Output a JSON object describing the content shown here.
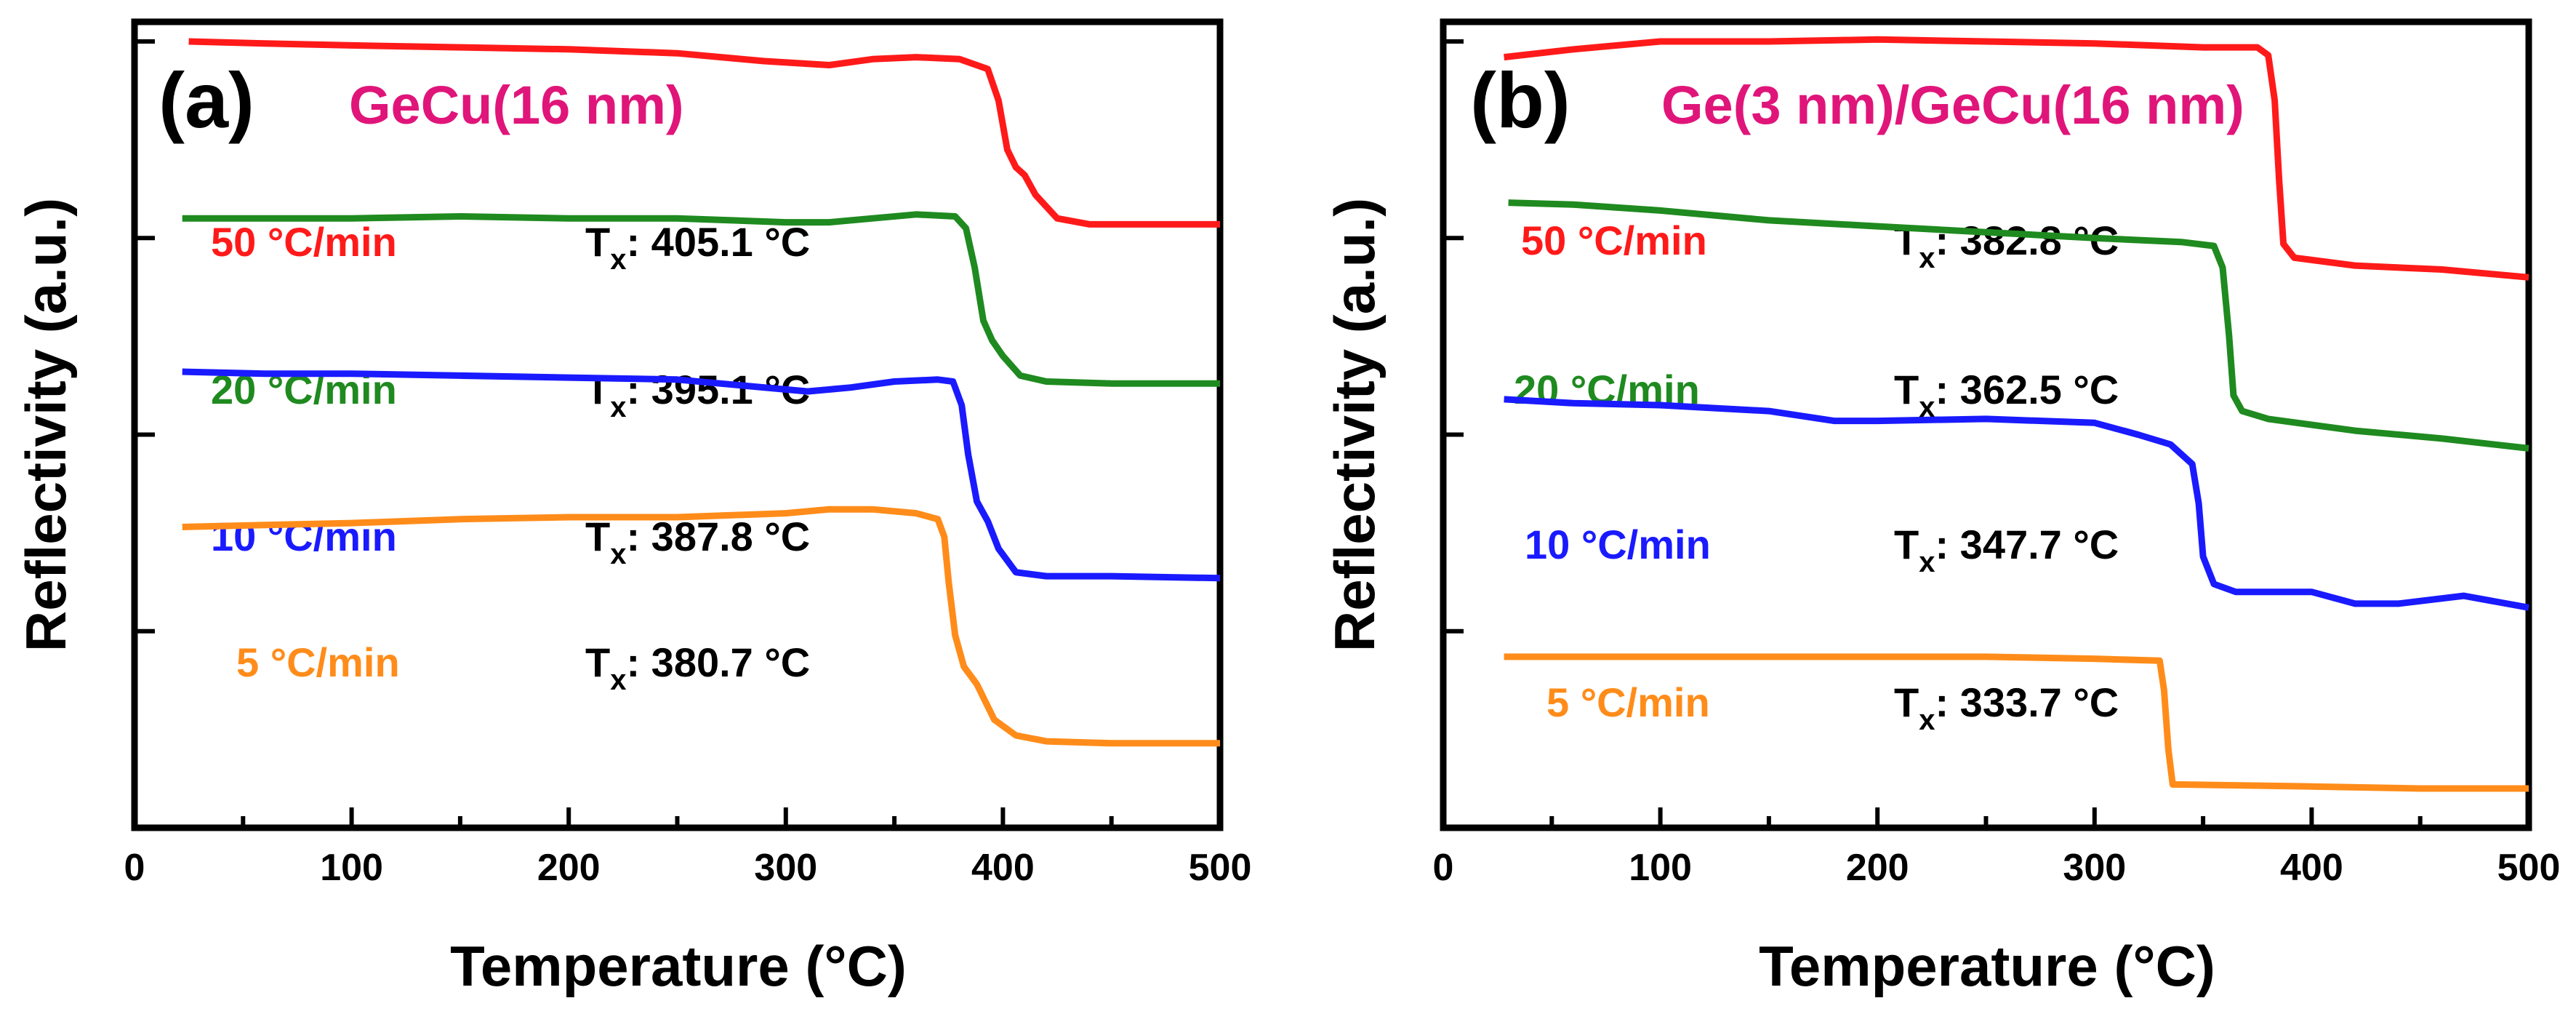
{
  "chart_data": [
    {
      "type": "line",
      "panel": "(a)",
      "title": "GeCu(16 nm)",
      "xlabel": "Temperature (°C)",
      "ylabel": "Reflectivity (a.u.)",
      "xlim": [
        0,
        500
      ],
      "ylim": [
        0,
        4.1
      ],
      "xticks": [
        "0",
        "100",
        "200",
        "300",
        "400",
        "500"
      ],
      "yticks_unlabeled": 4,
      "colors": {
        "title": "#e0157a"
      },
      "series": [
        {
          "name": "50 °C/min",
          "tx_label": "T",
          "tx_sub": "x",
          "tx_value": ": 405.1 °C",
          "color": "#ff1a1a",
          "points": [
            [
              25,
              4.0
            ],
            [
              60,
              3.99
            ],
            [
              100,
              3.98
            ],
            [
              150,
              3.97
            ],
            [
              200,
              3.96
            ],
            [
              250,
              3.94
            ],
            [
              290,
              3.9
            ],
            [
              320,
              3.88
            ],
            [
              340,
              3.91
            ],
            [
              360,
              3.92
            ],
            [
              380,
              3.91
            ],
            [
              393,
              3.86
            ],
            [
              398,
              3.7
            ],
            [
              402,
              3.45
            ],
            [
              406,
              3.36
            ],
            [
              410,
              3.32
            ],
            [
              415,
              3.22
            ],
            [
              425,
              3.1
            ],
            [
              440,
              3.07
            ],
            [
              470,
              3.07
            ],
            [
              500,
              3.07
            ]
          ]
        },
        {
          "name": "20 °C/min",
          "tx_label": "T",
          "tx_sub": "x",
          "tx_value": ": 395.1 °C",
          "color": "#1f8a1f",
          "points": [
            [
              22,
              3.1
            ],
            [
              60,
              3.1
            ],
            [
              100,
              3.1
            ],
            [
              150,
              3.11
            ],
            [
              200,
              3.1
            ],
            [
              250,
              3.1
            ],
            [
              300,
              3.08
            ],
            [
              320,
              3.08
            ],
            [
              340,
              3.1
            ],
            [
              360,
              3.12
            ],
            [
              378,
              3.11
            ],
            [
              383,
              3.05
            ],
            [
              387,
              2.85
            ],
            [
              391,
              2.58
            ],
            [
              395,
              2.48
            ],
            [
              400,
              2.4
            ],
            [
              408,
              2.3
            ],
            [
              420,
              2.27
            ],
            [
              450,
              2.26
            ],
            [
              500,
              2.26
            ]
          ]
        },
        {
          "name": "10 °C/min",
          "tx_label": "T",
          "tx_sub": "x",
          "tx_value": ": 387.8 °C",
          "color": "#1a1aff",
          "points": [
            [
              22,
              2.32
            ],
            [
              60,
              2.31
            ],
            [
              100,
              2.31
            ],
            [
              150,
              2.3
            ],
            [
              200,
              2.29
            ],
            [
              250,
              2.28
            ],
            [
              280,
              2.25
            ],
            [
              310,
              2.22
            ],
            [
              330,
              2.24
            ],
            [
              350,
              2.27
            ],
            [
              370,
              2.28
            ],
            [
              377,
              2.27
            ],
            [
              381,
              2.15
            ],
            [
              384,
              1.9
            ],
            [
              388,
              1.66
            ],
            [
              393,
              1.56
            ],
            [
              398,
              1.42
            ],
            [
              406,
              1.3
            ],
            [
              420,
              1.28
            ],
            [
              450,
              1.28
            ],
            [
              500,
              1.27
            ]
          ]
        },
        {
          "name": "5 °C/min",
          "tx_label": "T",
          "tx_sub": "x",
          "tx_value": ": 380.7 °C",
          "color": "#ff8c1a",
          "points": [
            [
              22,
              1.53
            ],
            [
              60,
              1.54
            ],
            [
              100,
              1.55
            ],
            [
              150,
              1.57
            ],
            [
              200,
              1.58
            ],
            [
              250,
              1.58
            ],
            [
              300,
              1.6
            ],
            [
              320,
              1.62
            ],
            [
              340,
              1.62
            ],
            [
              360,
              1.6
            ],
            [
              370,
              1.57
            ],
            [
              373,
              1.48
            ],
            [
              375,
              1.25
            ],
            [
              378,
              0.98
            ],
            [
              382,
              0.82
            ],
            [
              388,
              0.73
            ],
            [
              396,
              0.55
            ],
            [
              406,
              0.47
            ],
            [
              420,
              0.44
            ],
            [
              450,
              0.43
            ],
            [
              500,
              0.43
            ]
          ]
        }
      ]
    },
    {
      "type": "line",
      "panel": "(b)",
      "title": "Ge(3 nm)/GeCu(16 nm)",
      "xlabel": "Temperature (°C)",
      "ylabel": "Reflectivity (a.u.)",
      "xlim": [
        0,
        500
      ],
      "ylim": [
        0,
        4.1
      ],
      "xticks": [
        "0",
        "100",
        "200",
        "300",
        "400",
        "500"
      ],
      "yticks_unlabeled": 4,
      "colors": {
        "title": "#e0157a"
      },
      "series": [
        {
          "name": "50 °C/min",
          "tx_label": "T",
          "tx_sub": "x",
          "tx_value": ": 382.8 °C",
          "color": "#ff1a1a",
          "points": [
            [
              28,
              3.92
            ],
            [
              60,
              3.96
            ],
            [
              100,
              4.0
            ],
            [
              150,
              4.0
            ],
            [
              200,
              4.01
            ],
            [
              250,
              4.0
            ],
            [
              300,
              3.99
            ],
            [
              350,
              3.97
            ],
            [
              375,
              3.97
            ],
            [
              380,
              3.93
            ],
            [
              383,
              3.7
            ],
            [
              385,
              3.3
            ],
            [
              387,
              2.97
            ],
            [
              392,
              2.9
            ],
            [
              420,
              2.86
            ],
            [
              460,
              2.84
            ],
            [
              500,
              2.8
            ]
          ]
        },
        {
          "name": "20 °C/min",
          "tx_label": "T",
          "tx_sub": "x",
          "tx_value": ": 362.5 °C",
          "color": "#1f8a1f",
          "points": [
            [
              30,
              3.18
            ],
            [
              60,
              3.17
            ],
            [
              100,
              3.14
            ],
            [
              150,
              3.09
            ],
            [
              200,
              3.06
            ],
            [
              250,
              3.03
            ],
            [
              300,
              3.0
            ],
            [
              340,
              2.98
            ],
            [
              355,
              2.96
            ],
            [
              359,
              2.85
            ],
            [
              362,
              2.5
            ],
            [
              364,
              2.2
            ],
            [
              368,
              2.12
            ],
            [
              380,
              2.08
            ],
            [
              420,
              2.02
            ],
            [
              460,
              1.98
            ],
            [
              500,
              1.93
            ]
          ]
        },
        {
          "name": "10 °C/min",
          "tx_label": "T",
          "tx_sub": "x",
          "tx_value": ": 347.7 °C",
          "color": "#1a1aff",
          "points": [
            [
              28,
              2.18
            ],
            [
              60,
              2.16
            ],
            [
              100,
              2.15
            ],
            [
              150,
              2.12
            ],
            [
              180,
              2.07
            ],
            [
              200,
              2.07
            ],
            [
              250,
              2.08
            ],
            [
              300,
              2.06
            ],
            [
              320,
              2.0
            ],
            [
              335,
              1.95
            ],
            [
              345,
              1.85
            ],
            [
              348,
              1.65
            ],
            [
              350,
              1.38
            ],
            [
              355,
              1.24
            ],
            [
              365,
              1.2
            ],
            [
              400,
              1.2
            ],
            [
              420,
              1.14
            ],
            [
              440,
              1.14
            ],
            [
              470,
              1.18
            ],
            [
              500,
              1.12
            ]
          ]
        },
        {
          "name": "5 °C/min",
          "tx_label": "T",
          "tx_sub": "x",
          "tx_value": ": 333.7 °C",
          "color": "#ff8c1a",
          "points": [
            [
              28,
              0.87
            ],
            [
              100,
              0.87
            ],
            [
              150,
              0.87
            ],
            [
              200,
              0.87
            ],
            [
              250,
              0.87
            ],
            [
              300,
              0.86
            ],
            [
              330,
              0.85
            ],
            [
              332,
              0.7
            ],
            [
              334,
              0.4
            ],
            [
              336,
              0.22
            ],
            [
              340,
              0.22
            ],
            [
              400,
              0.21
            ],
            [
              450,
              0.2
            ],
            [
              500,
              0.2
            ]
          ]
        }
      ]
    }
  ]
}
